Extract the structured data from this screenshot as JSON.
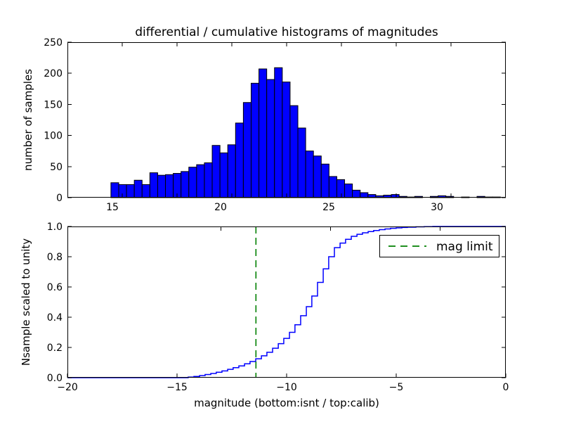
{
  "title": "differential / cumulative histograms of magnitudes",
  "colors": {
    "background": "#ffffff",
    "bar_fill": "#0000ff",
    "bar_edge": "#000000",
    "curve": "#0000ff",
    "mag_limit_line": "#008000",
    "frame": "#000000",
    "text": "#000000"
  },
  "legend": {
    "label": "mag limit",
    "position": "upper right",
    "line_style": "dashed",
    "line_color": "#008000"
  },
  "chart_data": [
    {
      "type": "bar",
      "subplot": "top",
      "ylabel": "number of samples",
      "xlim": [
        12.92,
        33.18
      ],
      "ylim": [
        0,
        250
      ],
      "yticks": [
        0,
        50,
        100,
        150,
        200,
        250
      ],
      "xtick_labels": [
        15,
        20,
        25,
        30
      ],
      "tick_marks": [
        15.45,
        17.99,
        20.52,
        23.05,
        25.58,
        28.12,
        30.65
      ],
      "grid": false,
      "bin_start": 14.93,
      "bin_width": 0.36,
      "values": [
        24,
        21,
        21,
        28,
        21,
        40,
        36,
        37,
        39,
        42,
        49,
        53,
        56,
        84,
        72,
        85,
        120,
        153,
        184,
        207,
        190,
        209,
        186,
        148,
        112,
        75,
        67,
        54,
        34,
        29,
        22,
        12,
        8,
        5,
        3,
        4,
        5,
        2,
        1,
        2,
        0,
        2,
        3,
        2,
        0,
        1,
        0,
        2,
        1,
        1
      ]
    },
    {
      "type": "line",
      "subplot": "bottom",
      "style": "step",
      "ylabel": "Nsample scaled to unity",
      "xlabel": "magnitude (bottom:isnt / top:calib)",
      "xlim": [
        -20,
        0
      ],
      "ylim": [
        0.0,
        1.0
      ],
      "xticks": [
        -20,
        -15,
        -10,
        -5,
        0
      ],
      "yticks": [
        0.0,
        0.2,
        0.4,
        0.6,
        0.8,
        1.0
      ],
      "top_axis_ticks": [
        -13,
        -8,
        -3
      ],
      "grid": false,
      "legend_entry": "mag limit",
      "mag_limit_x": -11.4,
      "points": [
        [
          -14.49,
          0.004
        ],
        [
          -14.23,
          0.008
        ],
        [
          -13.97,
          0.014
        ],
        [
          -13.72,
          0.021
        ],
        [
          -13.46,
          0.028
        ],
        [
          -13.21,
          0.036
        ],
        [
          -12.95,
          0.045
        ],
        [
          -12.69,
          0.055
        ],
        [
          -12.44,
          0.066
        ],
        [
          -12.18,
          0.078
        ],
        [
          -11.92,
          0.092
        ],
        [
          -11.67,
          0.107
        ],
        [
          -11.41,
          0.125
        ],
        [
          -11.15,
          0.145
        ],
        [
          -10.9,
          0.168
        ],
        [
          -10.64,
          0.195
        ],
        [
          -10.38,
          0.225
        ],
        [
          -10.13,
          0.26
        ],
        [
          -9.87,
          0.3
        ],
        [
          -9.62,
          0.35
        ],
        [
          -9.36,
          0.41
        ],
        [
          -9.1,
          0.47
        ],
        [
          -8.85,
          0.54
        ],
        [
          -8.59,
          0.63
        ],
        [
          -8.33,
          0.72
        ],
        [
          -8.08,
          0.8
        ],
        [
          -7.82,
          0.86
        ],
        [
          -7.56,
          0.89
        ],
        [
          -7.31,
          0.915
        ],
        [
          -7.05,
          0.935
        ],
        [
          -6.79,
          0.948
        ],
        [
          -6.54,
          0.958
        ],
        [
          -6.28,
          0.966
        ],
        [
          -6.03,
          0.973
        ],
        [
          -5.77,
          0.979
        ],
        [
          -5.51,
          0.984
        ],
        [
          -5.26,
          0.988
        ],
        [
          -5.0,
          0.991
        ],
        [
          -4.74,
          0.9935
        ],
        [
          -4.49,
          0.9955
        ],
        [
          -4.1,
          0.9975
        ],
        [
          -3.72,
          0.999
        ],
        [
          -3.33,
          1.0
        ]
      ]
    }
  ]
}
